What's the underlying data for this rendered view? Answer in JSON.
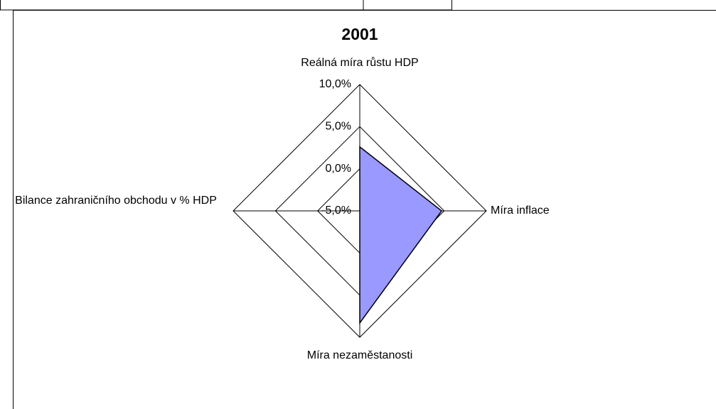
{
  "chart_data": {
    "type": "radar",
    "title": "2001",
    "categories": [
      "Reálná míra růstu HDP",
      "Míra inflace",
      "Míra nezaměstanosti",
      "Bilance zahraničního obchodu v % HDP"
    ],
    "values": [
      2.6,
      4.7,
      8.3,
      -5.0
    ],
    "color": "#9999ff",
    "ylim": [
      -5,
      10
    ],
    "yticks": [
      {
        "value": -5,
        "label": "-5,0%"
      },
      {
        "value": 0,
        "label": "0,0%"
      },
      {
        "value": 5,
        "label": "5,0%"
      },
      {
        "value": 10,
        "label": "10,0%"
      }
    ],
    "grid": true
  }
}
